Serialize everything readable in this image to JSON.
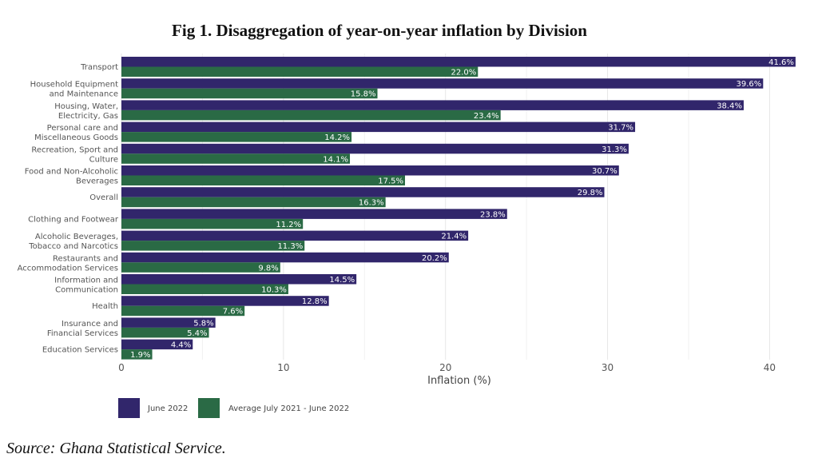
{
  "chart_data": {
    "type": "bar",
    "orientation": "horizontal",
    "title": "Fig 1. Disaggregation of year-on-year inflation by Division",
    "xlabel": "Inflation (%)",
    "xlim": [
      0,
      42
    ],
    "xticks": [
      0,
      10,
      20,
      30,
      40
    ],
    "grid": true,
    "legend_position": "bottom-left",
    "categories": [
      [
        "Transport"
      ],
      [
        "Household Equipment",
        "and Maintenance"
      ],
      [
        "Housing, Water,",
        "Electricity, Gas"
      ],
      [
        "Personal care and",
        "Miscellaneous Goods"
      ],
      [
        "Recreation, Sport and",
        "Culture"
      ],
      [
        "Food and Non-Alcoholic",
        "Beverages"
      ],
      [
        "Overall"
      ],
      [
        "Clothing and Footwear"
      ],
      [
        "Alcoholic Beverages,",
        "Tobacco and Narcotics"
      ],
      [
        "Restaurants and",
        "Accommodation Services"
      ],
      [
        "Information and",
        "Communication"
      ],
      [
        "Health"
      ],
      [
        "Insurance and",
        "Financial Services"
      ],
      [
        "Education Services"
      ]
    ],
    "series": [
      {
        "name": "June 2022",
        "color": "#31266b",
        "values": [
          41.6,
          39.6,
          38.4,
          31.7,
          31.3,
          30.7,
          29.8,
          23.8,
          21.4,
          20.2,
          14.5,
          12.8,
          5.8,
          4.4
        ],
        "labels": [
          "41.6%",
          "39.6%",
          "38.4%",
          "31.7%",
          "31.3%",
          "30.7%",
          "29.8%",
          "23.8%",
          "21.4%",
          "20.2%",
          "14.5%",
          "12.8%",
          "5.8%",
          "4.4%"
        ]
      },
      {
        "name": "Average July 2021 - June 2022",
        "color": "#2a6a45",
        "values": [
          22.0,
          15.8,
          23.4,
          14.2,
          14.1,
          17.5,
          16.3,
          11.2,
          11.3,
          9.8,
          10.3,
          7.6,
          5.4,
          1.9
        ],
        "labels": [
          "22.0%",
          "15.8%",
          "23.4%",
          "14.2%",
          "14.1%",
          "17.5%",
          "16.3%",
          "11.2%",
          "11.3%",
          "9.8%",
          "10.3%",
          "7.6%",
          "5.4%",
          "1.9%"
        ]
      }
    ]
  },
  "source_note": "Source: Ghana Statistical Service."
}
